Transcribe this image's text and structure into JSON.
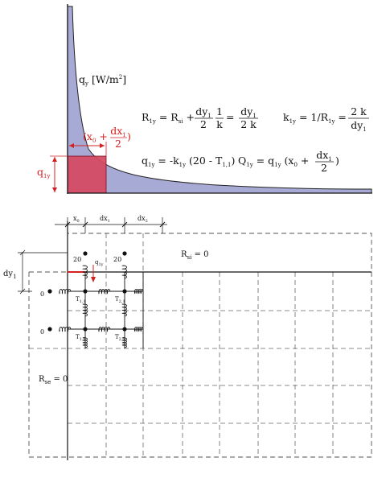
{
  "top_panel": {
    "flux_label": "q",
    "flux_sub": "y",
    "flux_unit": "[W/m",
    "flux_unit_exp": "2",
    "flux_unit_close": "]",
    "q1y_label": "q",
    "q1y_sub": "1y",
    "width_label_open": "(x",
    "width_label_x0sub": "0",
    "width_label_plus": " + ",
    "width_label_num": "dx",
    "width_label_num_sub": "1",
    "width_label_den": "2",
    "width_label_close": ")"
  },
  "equations": {
    "r1y": {
      "lhs": "R",
      "lhs_sub": "1y",
      "eq": " = ",
      "rsi": "R",
      "rsi_sub": "si",
      "plus": " + ",
      "f1_num": "dy",
      "f1_num_sub": "1",
      "f1_den": "2",
      "f2_num": "1",
      "f2_den": "k",
      "eq2": " = ",
      "f3_num": "dy",
      "f3_num_sub": "1",
      "f3_den": "2 k"
    },
    "k1y": {
      "lhs": "k",
      "lhs_sub": "1y",
      "eq": " = 1/R",
      "r_sub": "1y",
      "eq2": " = ",
      "f_num": "2 k",
      "f_den": "dy",
      "f_den_sub": "1"
    },
    "q1y": {
      "lhs": "q",
      "lhs_sub": "1y",
      "eq": " = -k",
      "k_sub": "1y",
      "paren": " (20 - T",
      "t_sub": "1,1",
      "close": ")"
    },
    "Q1y": {
      "lhs": "Q",
      "lhs_sub": "1y",
      "eq": " =  q",
      "q_sub": "1y",
      "open": " (x",
      "x_sub": "0",
      "plus": " + ",
      "f_num": "dx",
      "f_num_sub": "1",
      "f_den": "2",
      "close": ")"
    }
  },
  "grid": {
    "dim_x0": "x",
    "dim_x0_sub": "0",
    "dim_dx1": "dx",
    "dim_dx1_sub": "1",
    "dim_dx2": "dx",
    "dim_dx2_sub": "2",
    "dim_dy1": "dy",
    "dim_dy1_sub": "1",
    "rsi_label": "R",
    "rsi_sub": "si",
    "rsi_value": " = 0",
    "rse_label": "R",
    "rse_sub": "se",
    "rse_value": " = 0",
    "temp_top_left": "20",
    "temp_top_right": "20",
    "temp_left_upper": "0",
    "temp_left_lower": "0",
    "q1y_arrow_label": "q",
    "q1y_arrow_sub": "1y",
    "node_labels": [
      {
        "t": "T",
        "sub": "1,1"
      },
      {
        "t": "T",
        "sub": "2,1"
      },
      {
        "t": "T",
        "sub": "1,2"
      },
      {
        "t": "T",
        "sub": "2,2"
      }
    ]
  },
  "colors": {
    "curve_fill": "#a8aad6",
    "highlight_fill": "#d6495f",
    "accent": "#d42020",
    "line": "#111111",
    "dashed": "#555555"
  }
}
